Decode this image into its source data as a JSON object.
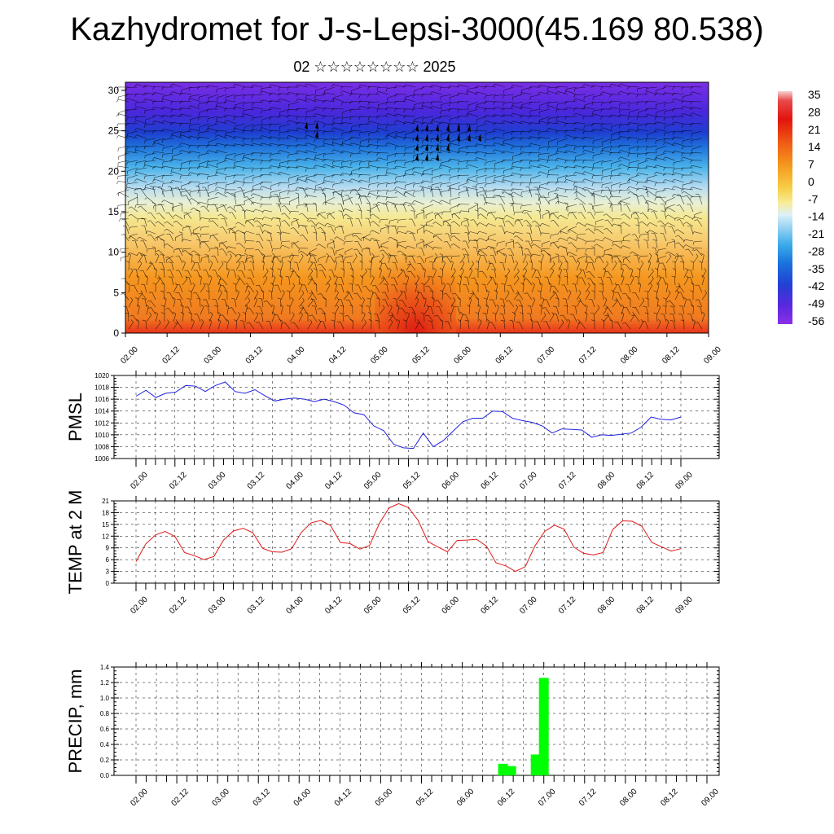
{
  "header": {
    "title": "Kazhydromet for J-s-Lepsi-3000(45.169 80.538)",
    "subtitle": "02 ☆☆☆☆☆☆☆☆ 2025"
  },
  "time_labels": [
    "02.00",
    "02.12",
    "03.00",
    "03.12",
    "04.00",
    "04.12",
    "05.00",
    "05.12",
    "06.00",
    "06.12",
    "07.00",
    "07.12",
    "08.00",
    "08.12",
    "09.00"
  ],
  "chart_data": [
    {
      "type": "heatmap",
      "name": "temperature-wind-cross-section",
      "yticks": [
        0,
        5,
        10,
        15,
        20,
        25,
        30
      ],
      "ylim": [
        0,
        31
      ],
      "colorbar_labels": [
        "35",
        "28",
        "21",
        "14",
        "7",
        "0",
        "-7",
        "-14",
        "-21",
        "-28",
        "-35",
        "-42",
        "-49",
        "-56"
      ],
      "colors": {
        "hot": "#e8281a",
        "orange": "#f5871e",
        "yellow": "#f5e486",
        "lightblue": "#b4dcf0",
        "cyan": "#2aa8e8",
        "blue": "#1e46d2",
        "purple": "#6a2ae0"
      }
    },
    {
      "type": "line",
      "name": "pmsl",
      "ylabel": "PMSL",
      "ylim": [
        1006,
        1020
      ],
      "yticks": [
        1006,
        1008,
        1010,
        1012,
        1014,
        1016,
        1018,
        1020
      ],
      "color": "#2020e0",
      "values": [
        1016.5,
        1017.5,
        1016.3,
        1017,
        1017.2,
        1018.3,
        1018.2,
        1017.3,
        1018.3,
        1018.9,
        1017.3,
        1017,
        1017.6,
        1016.6,
        1015.7,
        1016,
        1016.2,
        1016,
        1015.6,
        1016,
        1015.6,
        1015,
        1013.7,
        1013.4,
        1011.5,
        1010.7,
        1008.4,
        1007.8,
        1007.7,
        1010.3,
        1008,
        1009,
        1010.6,
        1012.2,
        1012.8,
        1012.8,
        1014,
        1013.9,
        1012.8,
        1012.4,
        1012.1,
        1011.5,
        1010.3,
        1011,
        1010.9,
        1010.8,
        1009.6,
        1010,
        1009.9,
        1010.1,
        1010.3,
        1011.3,
        1013,
        1012.6,
        1012.5,
        1013
      ]
    },
    {
      "type": "line",
      "name": "temp-2m",
      "ylabel": "TEMP at 2 M",
      "ylim": [
        0,
        21
      ],
      "yticks": [
        0,
        3,
        6,
        9,
        12,
        15,
        18,
        21
      ],
      "color": "#e01818",
      "values": [
        5.5,
        10,
        12.3,
        13.2,
        11.9,
        7.8,
        7,
        6,
        6.8,
        11,
        13.3,
        14,
        12.9,
        8.9,
        8,
        7.9,
        8.8,
        13,
        15.4,
        16,
        14.7,
        10.4,
        10.1,
        8.7,
        9.6,
        15.2,
        19.2,
        20.3,
        19.3,
        16,
        10.6,
        9.3,
        8,
        10.9,
        11,
        11.2,
        9.5,
        5.2,
        4.4,
        3,
        4.2,
        9.5,
        13.2,
        14.8,
        13.8,
        9.2,
        7.6,
        7.2,
        7.8,
        13.7,
        15.9,
        15.8,
        14.5,
        10.4,
        9.3,
        8.2,
        8.8
      ]
    },
    {
      "type": "bar",
      "name": "precip",
      "ylabel": "PRECIP, mm",
      "ylim": [
        0,
        1.4
      ],
      "yticks": [
        "0.0",
        "0.2",
        "0.4",
        "0.6",
        "0.8",
        "1.0",
        "1.2",
        "1.4"
      ],
      "color": "#00ff00",
      "bars": [
        {
          "t": 4.5,
          "value": 0.15
        },
        {
          "t": 4.6,
          "value": 0.12
        },
        {
          "t": 4.9,
          "value": 0.27
        },
        {
          "t": 5.0,
          "value": 1.26
        }
      ]
    }
  ]
}
